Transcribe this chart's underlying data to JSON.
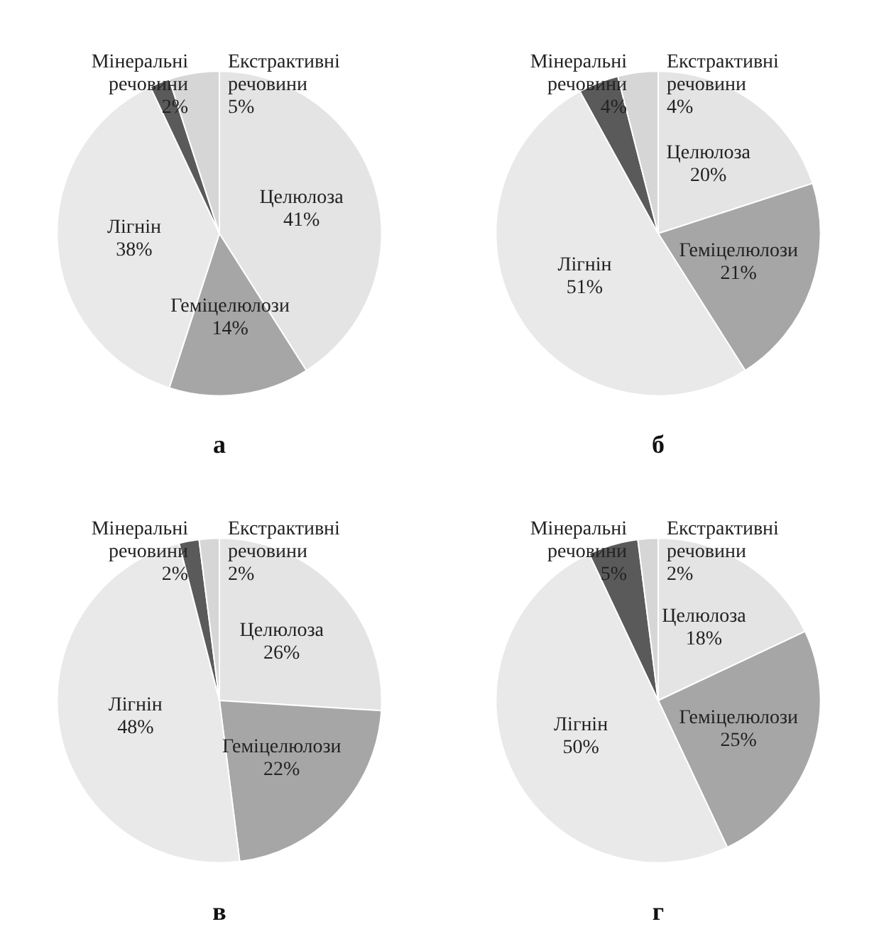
{
  "chart_data": [
    {
      "type": "pie",
      "title": "а",
      "categories": [
        "Целюлоза",
        "Геміцелюлози",
        "Лігнін",
        "Мінеральні речовини",
        "Екстрактивні речовини"
      ],
      "values": [
        41,
        14,
        38,
        2,
        5
      ],
      "value_labels": [
        "41%",
        "14%",
        "38%",
        "2%",
        "5%"
      ],
      "colors": [
        "#e4e4e4",
        "#a6a6a6",
        "#e9e9e9",
        "#5a5a5a",
        "#d6d6d6"
      ]
    },
    {
      "type": "pie",
      "title": "б",
      "categories": [
        "Целюлоза",
        "Геміцелюлози",
        "Лігнін",
        "Мінеральні речовини",
        "Екстрактивні речовини"
      ],
      "values": [
        20,
        21,
        51,
        4,
        4
      ],
      "value_labels": [
        "20%",
        "21%",
        "51%",
        "4%",
        "4%"
      ],
      "colors": [
        "#e4e4e4",
        "#a6a6a6",
        "#e9e9e9",
        "#5a5a5a",
        "#d6d6d6"
      ]
    },
    {
      "type": "pie",
      "title": "в",
      "categories": [
        "Целюлоза",
        "Геміцелюлози",
        "Лігнін",
        "Мінеральні речовини",
        "Екстрактивні речовини"
      ],
      "values": [
        26,
        22,
        48,
        2,
        2
      ],
      "value_labels": [
        "26%",
        "22%",
        "48%",
        "2%",
        "2%"
      ],
      "colors": [
        "#e4e4e4",
        "#a6a6a6",
        "#e9e9e9",
        "#5a5a5a",
        "#d6d6d6"
      ]
    },
    {
      "type": "pie",
      "title": "г",
      "categories": [
        "Целюлоза",
        "Геміцелюлози",
        "Лігнін",
        "Мінеральні речовини",
        "Екстрактивні речовини"
      ],
      "values": [
        18,
        25,
        50,
        5,
        2
      ],
      "value_labels": [
        "18%",
        "25%",
        "50%",
        "5%",
        "2%"
      ],
      "colors": [
        "#e4e4e4",
        "#a6a6a6",
        "#e9e9e9",
        "#5a5a5a",
        "#d6d6d6"
      ]
    }
  ]
}
